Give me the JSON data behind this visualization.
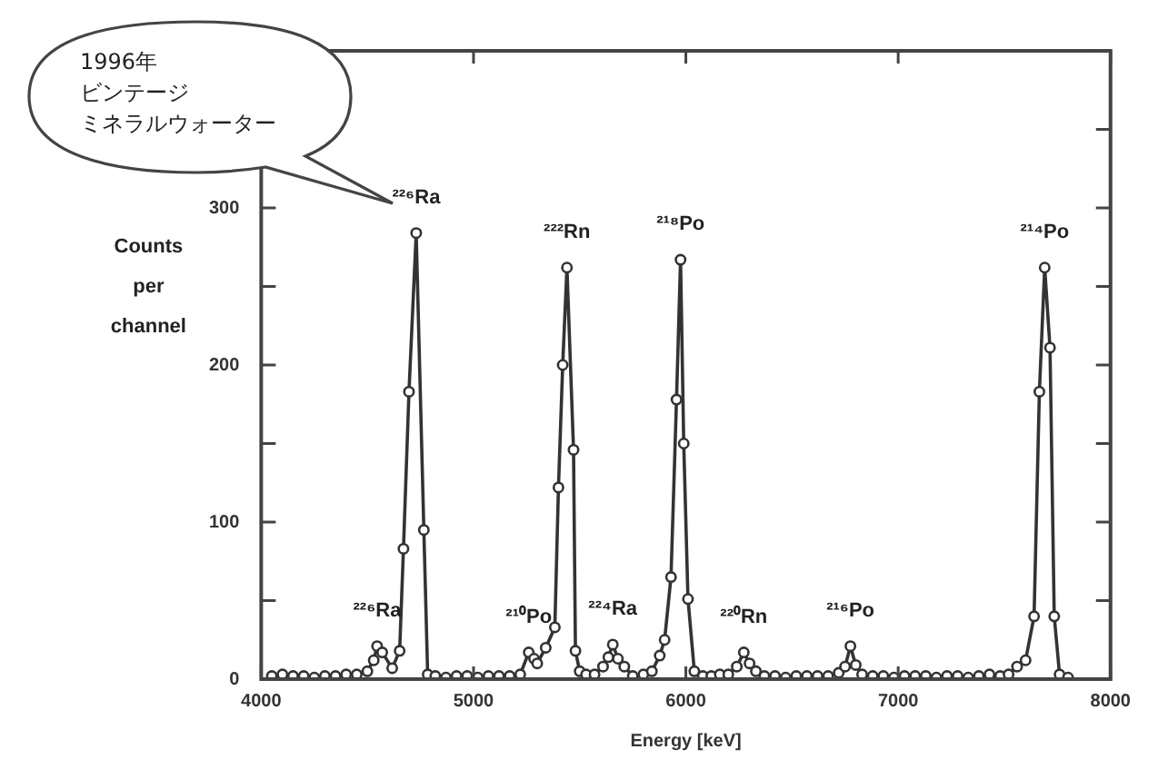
{
  "chart_data": {
    "type": "line",
    "xlabel": "Energy [keV]",
    "ylabel": "Counts per channel",
    "x": [
      4050,
      4100,
      4150,
      4200,
      4250,
      4300,
      4350,
      4400,
      4450,
      4500,
      4530,
      4546,
      4570,
      4617,
      4652,
      4670,
      4696,
      4730,
      4766,
      4784,
      4820,
      4870,
      4920,
      4970,
      5020,
      5070,
      5120,
      5170,
      5220,
      5260,
      5285,
      5300,
      5340,
      5383,
      5400,
      5420,
      5440,
      5471,
      5480,
      5500,
      5530,
      5570,
      5610,
      5635,
      5656,
      5680,
      5710,
      5750,
      5800,
      5840,
      5877,
      5900,
      5930,
      5956,
      5975,
      5990,
      6010,
      6040,
      6080,
      6120,
      6160,
      6200,
      6240,
      6273,
      6300,
      6330,
      6370,
      6420,
      6470,
      6520,
      6570,
      6620,
      6670,
      6720,
      6750,
      6775,
      6800,
      6830,
      6880,
      6930,
      6980,
      7030,
      7080,
      7130,
      7180,
      7230,
      7280,
      7330,
      7380,
      7430,
      7480,
      7520,
      7560,
      7600,
      7640,
      7665,
      7690,
      7715,
      7735,
      7760,
      7800
    ],
    "series": [
      {
        "color": "#333333",
        "values": [
          2,
          3,
          2,
          2,
          1,
          2,
          2,
          3,
          3,
          5,
          12,
          21,
          17,
          7,
          18,
          83,
          183,
          284,
          95,
          3,
          2,
          1,
          2,
          2,
          1,
          2,
          2,
          2,
          3,
          17,
          13,
          10,
          20,
          33,
          122,
          200,
          262,
          146,
          18,
          5,
          3,
          3,
          8,
          14,
          22,
          13,
          8,
          2,
          3,
          5,
          15,
          25,
          65,
          178,
          267,
          150,
          51,
          5,
          2,
          2,
          3,
          3,
          8,
          17,
          10,
          5,
          2,
          2,
          1,
          2,
          2,
          2,
          2,
          4,
          8,
          21,
          9,
          3,
          2,
          2,
          1,
          2,
          2,
          2,
          1,
          2,
          2,
          1,
          2,
          3,
          2,
          3,
          8,
          12,
          40,
          183,
          262,
          211,
          40,
          3,
          1
        ]
      }
    ],
    "xlim": [
      4000,
      8000
    ],
    "xticks": [
      4000,
      5000,
      6000,
      7000,
      8000
    ],
    "ylim": [
      0,
      400
    ],
    "yticks": [
      0,
      {
        "value": 50,
        "label": null
      },
      100,
      {
        "value": 150,
        "label": null
      },
      200,
      {
        "value": 250,
        "label": null
      },
      300,
      {
        "value": 350,
        "label": null
      },
      {
        "value": 400,
        "label": null
      }
    ],
    "marker": "circle",
    "line_style": "solid",
    "grid": false,
    "legend": false,
    "annotations": [
      "1996年",
      "ビンテージ",
      "ミネラルウォーター",
      {
        "text": "²²⁶Ra",
        "x": 4730,
        "y": 284
      },
      {
        "text": "²²²Rn",
        "x": 5440,
        "y": 262
      },
      {
        "text": "²¹⁸Po",
        "x": 5975,
        "y": 267
      },
      {
        "text": "²¹⁴Po",
        "x": 7690,
        "y": 262
      },
      {
        "text": "²²⁶Ra",
        "x": 4546,
        "y": 21
      },
      {
        "text": "²¹⁰Po",
        "x": 5260,
        "y": 17
      },
      {
        "text": "²²⁴Ra",
        "x": 5656,
        "y": 22
      },
      {
        "text": "²²⁰Rn",
        "x": 6273,
        "y": 17
      },
      {
        "text": "²¹⁶Po",
        "x": 6775,
        "y": 21
      }
    ]
  }
}
